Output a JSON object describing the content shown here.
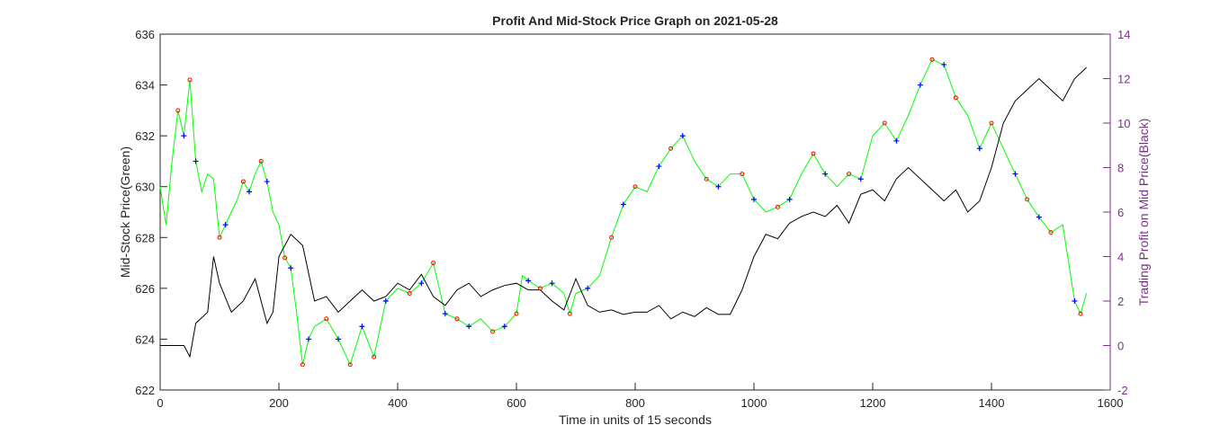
{
  "chart_data": {
    "type": "line",
    "title": "Profit And Mid-Stock Price Graph on 2021-05-28",
    "xlabel": "Time in units of 15 seconds",
    "ylabel": "Mid-Stock Price(Green)",
    "y2label": "Trading Profit on Mid Price(Black)",
    "xlim": [
      0,
      1600
    ],
    "xticks": [
      0,
      200,
      400,
      600,
      800,
      1000,
      1200,
      1400,
      1600
    ],
    "ylim": [
      622,
      636
    ],
    "yticks": [
      622,
      624,
      626,
      628,
      630,
      632,
      634,
      636
    ],
    "y2lim": [
      -2,
      14
    ],
    "y2ticks": [
      -2,
      0,
      2,
      4,
      6,
      8,
      10,
      12,
      14
    ],
    "axis_color": "#7e2f8e",
    "series": [
      {
        "color": "#00ff00",
        "marker": "line",
        "x": [
          0,
          10,
          20,
          30,
          40,
          50,
          60,
          70,
          80,
          90,
          100,
          110,
          120,
          130,
          140,
          150,
          160,
          170,
          180,
          190,
          200,
          210,
          220,
          230,
          240,
          250,
          260,
          280,
          300,
          320,
          340,
          360,
          380,
          400,
          420,
          440,
          460,
          480,
          500,
          520,
          540,
          560,
          580,
          600,
          610,
          620,
          640,
          660,
          680,
          690,
          700,
          720,
          740,
          760,
          780,
          800,
          820,
          840,
          860,
          880,
          900,
          920,
          940,
          960,
          980,
          1000,
          1020,
          1040,
          1060,
          1080,
          1100,
          1120,
          1140,
          1160,
          1180,
          1200,
          1220,
          1240,
          1260,
          1280,
          1300,
          1320,
          1340,
          1360,
          1380,
          1400,
          1420,
          1440,
          1460,
          1480,
          1500,
          1520,
          1540,
          1550,
          1560
        ],
        "values": [
          630,
          628.5,
          631,
          633,
          632,
          634.2,
          631,
          629.8,
          630.5,
          630.3,
          628,
          628.5,
          629,
          629.5,
          630.2,
          629.8,
          630.5,
          631,
          630.2,
          629,
          628.5,
          627.2,
          626.8,
          625,
          623,
          624,
          624.5,
          624.8,
          624,
          623,
          624.5,
          623.3,
          625.5,
          626,
          625.8,
          626.2,
          627,
          625,
          624.8,
          624.5,
          624.8,
          624.3,
          624.5,
          625,
          626.5,
          626.3,
          626,
          626.2,
          625.8,
          625,
          625.8,
          626,
          626.5,
          628,
          629.3,
          630,
          629.8,
          630.8,
          631.5,
          632,
          631,
          630.3,
          630,
          630.5,
          630.5,
          629.5,
          629,
          629.2,
          629.5,
          630.5,
          631.3,
          630.5,
          630,
          630.5,
          630.3,
          632,
          632.5,
          631.8,
          632.8,
          634,
          635,
          634.8,
          633.5,
          632.8,
          631.5,
          632.5,
          631.5,
          630.5,
          629.5,
          628.8,
          628.2,
          628.5,
          625.5,
          625,
          625.8
        ]
      },
      {
        "color": "#000000",
        "marker": "line",
        "axis": "y2",
        "x": [
          0,
          40,
          50,
          60,
          80,
          90,
          100,
          120,
          140,
          160,
          180,
          190,
          200,
          220,
          240,
          260,
          280,
          300,
          320,
          340,
          360,
          380,
          400,
          420,
          440,
          460,
          480,
          500,
          520,
          540,
          560,
          580,
          600,
          620,
          640,
          660,
          680,
          700,
          720,
          740,
          760,
          780,
          800,
          820,
          840,
          860,
          880,
          900,
          920,
          940,
          960,
          980,
          1000,
          1020,
          1040,
          1060,
          1080,
          1100,
          1120,
          1140,
          1160,
          1180,
          1200,
          1220,
          1240,
          1260,
          1280,
          1300,
          1320,
          1340,
          1360,
          1380,
          1400,
          1420,
          1440,
          1460,
          1480,
          1500,
          1520,
          1540,
          1560
        ],
        "values": [
          0,
          0,
          -0.5,
          1,
          1.5,
          4,
          2.8,
          1.5,
          2,
          3,
          1,
          1.5,
          4,
          5,
          4.5,
          2,
          2.2,
          1.5,
          2,
          2.5,
          2,
          2.2,
          2.8,
          2.5,
          3.2,
          2.2,
          1.8,
          2.5,
          2.8,
          2.2,
          2.5,
          2.7,
          2.8,
          2.5,
          2.5,
          2,
          1.6,
          3,
          1.8,
          1.5,
          1.6,
          1.4,
          1.5,
          1.5,
          1.8,
          1.2,
          1.5,
          1.3,
          1.7,
          1.4,
          1.4,
          2.5,
          4,
          5,
          4.8,
          5.5,
          5.8,
          6,
          5.8,
          6.3,
          5.5,
          6.8,
          7,
          6.5,
          7.5,
          8,
          7.5,
          7,
          6.5,
          7,
          6,
          6.5,
          8,
          10,
          11,
          11.5,
          12,
          11.5,
          11,
          12,
          12.5
        ]
      },
      {
        "color": "#ff0000",
        "marker": "o",
        "x": [
          30,
          50,
          100,
          140,
          170,
          210,
          240,
          280,
          320,
          360,
          420,
          460,
          500,
          560,
          600,
          640,
          690,
          760,
          800,
          860,
          920,
          980,
          1040,
          1100,
          1160,
          1220,
          1300,
          1340,
          1400,
          1460,
          1500,
          1550
        ],
        "values": [
          633,
          634.2,
          628,
          630.2,
          631,
          627.2,
          623,
          624.8,
          623,
          623.3,
          625.8,
          627,
          624.8,
          624.3,
          625,
          626,
          625,
          628,
          630,
          631.5,
          630.3,
          630.5,
          629.2,
          631.3,
          630.5,
          632.5,
          635,
          633.5,
          632.5,
          629.5,
          628.2,
          625
        ]
      },
      {
        "color": "#0000ff",
        "marker": "+",
        "x": [
          40,
          60,
          110,
          150,
          180,
          220,
          250,
          300,
          340,
          380,
          440,
          480,
          520,
          580,
          620,
          660,
          720,
          780,
          840,
          880,
          940,
          1000,
          1060,
          1120,
          1180,
          1240,
          1280,
          1320,
          1380,
          1440,
          1480,
          1540
        ],
        "values": [
          632,
          631,
          628.5,
          629.8,
          630.2,
          626.8,
          624,
          624,
          624.5,
          625.5,
          626.2,
          625,
          624.5,
          624.5,
          626.3,
          626.2,
          626,
          629.3,
          630.8,
          632,
          630,
          629.5,
          629.5,
          630.5,
          630.3,
          631.8,
          634,
          634.8,
          631.5,
          630.5,
          628.8,
          625.5
        ]
      }
    ]
  }
}
